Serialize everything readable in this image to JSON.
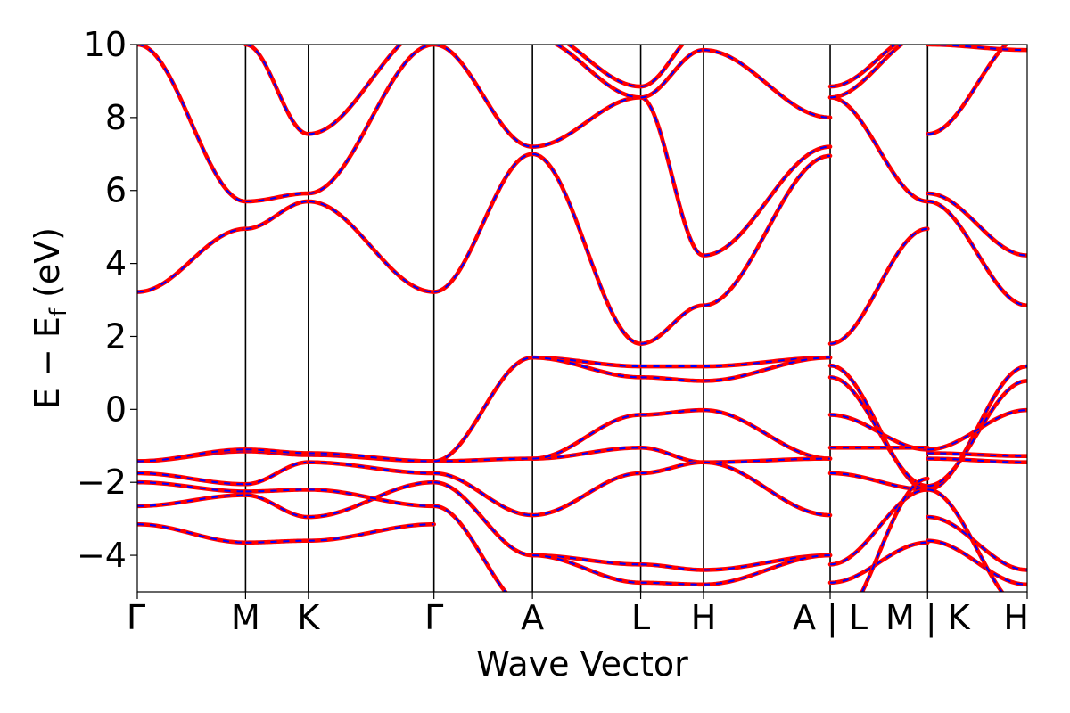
{
  "chart_data": {
    "type": "line",
    "xlabel": "Wave Vector",
    "ylabel": "E − E",
    "ylabel_subscript": "f",
    "ylabel_unit": " (eV)",
    "ylim": [
      -5,
      10
    ],
    "yticks": [
      -4,
      -2,
      0,
      2,
      4,
      6,
      8,
      10
    ],
    "ytick_labels": [
      "−4",
      "−2",
      "0",
      "2",
      "4",
      "6",
      "8",
      "10"
    ],
    "xlim": [
      0,
      8.22
    ],
    "kpoint_positions": [
      0,
      1.0,
      1.58,
      2.74,
      3.65,
      4.65,
      5.23,
      6.4,
      7.3,
      8.22
    ],
    "xtick_positions": [
      0,
      1.0,
      1.58,
      2.74,
      3.65,
      4.65,
      5.23,
      6.4,
      7.3,
      8.22
    ],
    "xtick_labels": [
      "Γ",
      "M",
      "K",
      "Γ",
      "A",
      "L",
      "H",
      "A | L",
      "M | K",
      "H"
    ],
    "series_colors": {
      "overlay": "#ff0000",
      "base": "#0000ff"
    },
    "segments": [
      {
        "x": [
          0,
          1.0
        ],
        "bands": [
          [
            -3.15,
            -3.65
          ],
          [
            -2.65,
            -2.35
          ],
          [
            -2.0,
            -2.25
          ],
          [
            -1.75,
            -2.05
          ],
          [
            -1.42,
            -1.15
          ],
          [
            -1.42,
            -1.1
          ],
          [
            3.22,
            4.95
          ],
          [
            10.0,
            5.7
          ]
        ]
      },
      {
        "x": [
          1.0,
          1.58
        ],
        "bands": [
          [
            -3.65,
            -3.6
          ],
          [
            -2.35,
            -2.95
          ],
          [
            -2.25,
            -2.2
          ],
          [
            -2.05,
            -1.45
          ],
          [
            -1.15,
            -1.25
          ],
          [
            -1.1,
            -1.2
          ],
          [
            4.95,
            5.7
          ],
          [
            5.7,
            5.92
          ],
          [
            10.0,
            7.55
          ]
        ]
      },
      {
        "x": [
          1.58,
          2.74
        ],
        "bands": [
          [
            -3.6,
            -3.15
          ],
          [
            -2.95,
            -2.0
          ],
          [
            -2.2,
            -2.65
          ],
          [
            -1.45,
            -1.75
          ],
          [
            -1.25,
            -1.42
          ],
          [
            -1.2,
            -1.42
          ],
          [
            5.7,
            3.22
          ],
          [
            5.92,
            10.0
          ],
          [
            7.55,
            10.5
          ]
        ]
      },
      {
        "x": [
          2.74,
          3.65
        ],
        "bands": [
          [
            -1.42,
            -1.35
          ],
          [
            -1.42,
            1.42
          ],
          [
            -1.75,
            -2.9
          ],
          [
            -2.0,
            -4.0
          ],
          [
            -2.65,
            -5.5
          ],
          [
            3.22,
            7.0
          ],
          [
            10.0,
            7.2
          ]
        ]
      },
      {
        "x": [
          3.65,
          4.65
        ],
        "bands": [
          [
            1.42,
            1.18
          ],
          [
            1.42,
            0.88
          ],
          [
            -1.35,
            -1.05
          ],
          [
            -1.35,
            -0.15
          ],
          [
            -2.9,
            -1.75
          ],
          [
            -4.0,
            -4.25
          ],
          [
            -4.0,
            -4.75
          ],
          [
            7.0,
            1.8
          ],
          [
            7.2,
            8.55
          ],
          [
            10.2,
            8.55
          ],
          [
            10.4,
            8.85
          ]
        ]
      },
      {
        "x": [
          4.65,
          5.23
        ],
        "bands": [
          [
            1.18,
            1.18
          ],
          [
            0.88,
            0.78
          ],
          [
            -0.15,
            -0.02
          ],
          [
            -1.05,
            -1.45
          ],
          [
            -1.75,
            -1.45
          ],
          [
            -4.25,
            -4.4
          ],
          [
            -4.75,
            -4.8
          ],
          [
            1.8,
            2.85
          ],
          [
            8.55,
            4.22
          ],
          [
            8.55,
            9.85
          ],
          [
            8.85,
            10.4
          ]
        ]
      },
      {
        "x": [
          5.23,
          6.4
        ],
        "bands": [
          [
            1.18,
            1.42
          ],
          [
            0.78,
            1.42
          ],
          [
            -0.02,
            -1.35
          ],
          [
            -1.45,
            -1.35
          ],
          [
            -1.45,
            -2.9
          ],
          [
            -4.4,
            -4.0
          ],
          [
            -4.8,
            -4.0
          ],
          [
            2.85,
            6.95
          ],
          [
            4.22,
            7.2
          ],
          [
            9.85,
            8.0
          ],
          [
            10.4,
            10.4
          ]
        ]
      },
      {
        "x": [
          6.4,
          7.3
        ],
        "bands": [
          [
            1.2,
            -2.2
          ],
          [
            0.88,
            -2.1
          ],
          [
            -0.15,
            -1.1
          ],
          [
            -1.05,
            -1.05
          ],
          [
            -1.75,
            -2.2
          ],
          [
            -4.25,
            -2.2
          ],
          [
            -4.75,
            -3.65
          ],
          [
            -6.0,
            -1.9
          ],
          [
            1.8,
            4.95
          ],
          [
            8.55,
            5.7
          ],
          [
            8.55,
            10.3
          ],
          [
            8.85,
            10.4
          ]
        ]
      },
      {
        "x": [
          7.3,
          8.22
        ],
        "bands": [
          [
            -2.2,
            1.18
          ],
          [
            -2.1,
            0.78
          ],
          [
            -1.1,
            -0.02
          ],
          [
            -1.2,
            -1.28
          ],
          [
            -1.35,
            -1.45
          ],
          [
            -2.95,
            -4.4
          ],
          [
            -3.6,
            -4.8
          ],
          [
            -2.2,
            -5.5
          ],
          [
            5.92,
            4.22
          ],
          [
            5.7,
            2.85
          ],
          [
            7.55,
            10.3
          ],
          [
            10.0,
            9.85
          ]
        ]
      }
    ]
  }
}
